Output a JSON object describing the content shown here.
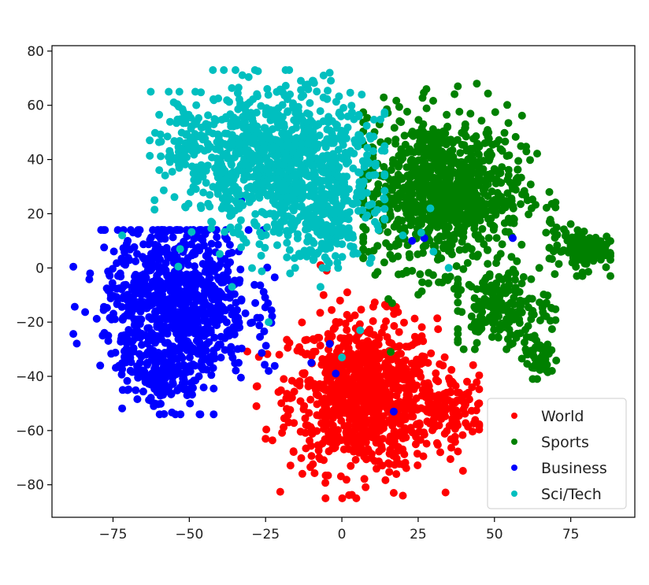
{
  "chart_data": {
    "type": "scatter",
    "title": "",
    "xlabel": "",
    "ylabel": "",
    "xlim": [
      -95,
      96
    ],
    "ylim": [
      -92,
      82
    ],
    "xticks": [
      -75,
      -50,
      -25,
      0,
      25,
      50,
      75
    ],
    "yticks": [
      80,
      60,
      40,
      20,
      0,
      -20,
      -40,
      -60,
      -80
    ],
    "xtick_labels": [
      "−75",
      "−50",
      "−25",
      "0",
      "25",
      "50",
      "75"
    ],
    "ytick_labels": [
      "80",
      "60",
      "40",
      "20",
      "0",
      "−20",
      "−40",
      "−60",
      "−80"
    ],
    "grid": false,
    "legend_position": "lower right",
    "series": [
      {
        "name": "World",
        "color": "#ff0000",
        "clusters": [
          {
            "cx": 7,
            "cy": -47,
            "sx": 12,
            "sy": 14,
            "n": 900,
            "xmin": -31,
            "xmax": 43,
            "ymin": -85,
            "ymax": -9
          },
          {
            "cx": 35,
            "cy": -52,
            "sx": 6,
            "sy": 6,
            "n": 120,
            "xmin": 22,
            "xmax": 45,
            "ymin": -68,
            "ymax": -38
          }
        ],
        "outliers": [
          [
            -5,
            -1
          ],
          [
            -7,
            1
          ],
          [
            -6,
            -10
          ],
          [
            17,
            -83
          ],
          [
            20,
            -84
          ],
          [
            -28,
            -51
          ],
          [
            -25,
            -63
          ]
        ]
      },
      {
        "name": "Sports",
        "color": "#008000",
        "clusters": [
          {
            "cx": 33,
            "cy": 28,
            "sx": 13,
            "sy": 14,
            "n": 900,
            "xmin": 7,
            "xmax": 70,
            "ymin": -13,
            "ymax": 68
          },
          {
            "cx": 52,
            "cy": -15,
            "sx": 8,
            "sy": 7,
            "n": 180,
            "xmin": 38,
            "xmax": 70,
            "ymin": -30,
            "ymax": 0
          },
          {
            "cx": 78,
            "cy": 7,
            "sx": 5,
            "sy": 4,
            "n": 120,
            "xmin": 68,
            "xmax": 88,
            "ymin": -3,
            "ymax": 17
          },
          {
            "cx": 65,
            "cy": -33,
            "sx": 3,
            "sy": 4,
            "n": 50,
            "xmin": 59,
            "xmax": 71,
            "ymin": -41,
            "ymax": -26
          }
        ],
        "outliers": [
          [
            38,
            67
          ],
          [
            16,
            -31
          ],
          [
            68,
            28
          ]
        ]
      },
      {
        "name": "Business",
        "color": "#0000ff",
        "clusters": [
          {
            "cx": -54,
            "cy": -12,
            "sx": 12,
            "sy": 14,
            "n": 850,
            "xmin": -88,
            "xmax": -22,
            "ymin": -54,
            "ymax": 14
          },
          {
            "cx": -58,
            "cy": -40,
            "sx": 7,
            "sy": 6,
            "n": 160,
            "xmin": -72,
            "xmax": -42,
            "ymin": -54,
            "ymax": -27
          }
        ],
        "outliers": [
          [
            -10,
            -35
          ],
          [
            -4,
            -28
          ],
          [
            -2,
            -39
          ],
          [
            17,
            -53
          ],
          [
            56,
            11
          ],
          [
            27,
            11
          ],
          [
            23,
            10
          ],
          [
            -33,
            25
          ],
          [
            -24,
            -38
          ]
        ]
      },
      {
        "name": "Sci/Tech",
        "color": "#00bfbf",
        "clusters": [
          {
            "cx": -20,
            "cy": 38,
            "sx": 15,
            "sy": 14,
            "n": 950,
            "xmin": -65,
            "xmax": 14,
            "ymin": -2,
            "ymax": 73
          },
          {
            "cx": -4,
            "cy": 18,
            "sx": 7,
            "sy": 8,
            "n": 150,
            "xmin": -18,
            "xmax": 13,
            "ymin": 0,
            "ymax": 35
          },
          {
            "cx": -50,
            "cy": 48,
            "sx": 6,
            "sy": 8,
            "n": 100,
            "xmin": -66,
            "xmax": -38,
            "ymin": 28,
            "ymax": 65
          }
        ],
        "outliers": [
          [
            -4,
            72
          ],
          [
            -6,
            71
          ],
          [
            -72,
            12
          ],
          [
            -36,
            -7
          ],
          [
            -24,
            -20
          ],
          [
            -7,
            -7
          ],
          [
            6,
            -23
          ],
          [
            0,
            -33
          ],
          [
            26,
            13
          ],
          [
            29,
            22
          ],
          [
            30,
            6
          ],
          [
            35,
            0
          ],
          [
            20,
            12
          ],
          [
            12,
            14
          ],
          [
            -53,
            7
          ]
        ]
      }
    ]
  }
}
